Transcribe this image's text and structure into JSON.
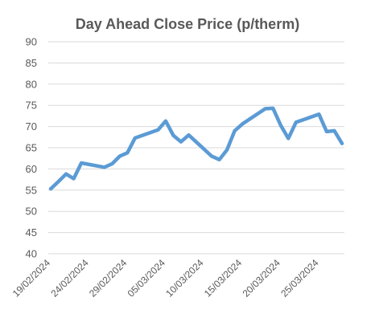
{
  "chart_data": {
    "type": "line",
    "title": "Day Ahead Close Price (p/therm)",
    "xlabel": "",
    "ylabel": "",
    "ylim": [
      40,
      90
    ],
    "yticks": [
      40,
      45,
      50,
      55,
      60,
      65,
      70,
      75,
      80,
      85,
      90
    ],
    "xticks": [
      "19/02/2024",
      "24/02/2024",
      "29/02/2024",
      "05/03/2024",
      "10/03/2024",
      "15/03/2024",
      "20/03/2024",
      "25/03/2024"
    ],
    "grid": "horizontal",
    "legend": "none",
    "line_color": "#5b9bd5",
    "series": [
      {
        "x": [
          "19/02/2024",
          "20/02/2024",
          "21/02/2024",
          "22/02/2024",
          "23/02/2024",
          "26/02/2024",
          "27/02/2024",
          "28/02/2024",
          "29/02/2024",
          "01/03/2024",
          "04/03/2024",
          "05/03/2024",
          "06/03/2024",
          "07/03/2024",
          "08/03/2024",
          "11/03/2024",
          "12/03/2024",
          "13/03/2024",
          "14/03/2024",
          "15/03/2024",
          "18/03/2024",
          "19/03/2024",
          "20/03/2024",
          "21/03/2024",
          "22/03/2024",
          "25/03/2024",
          "26/03/2024",
          "27/03/2024",
          "28/03/2024"
        ],
        "values": [
          55.3,
          57.0,
          58.8,
          57.7,
          61.4,
          60.4,
          61.2,
          63.0,
          63.8,
          67.3,
          69.2,
          71.3,
          67.9,
          66.4,
          68.0,
          63.0,
          62.2,
          64.5,
          69.0,
          70.6,
          74.2,
          74.3,
          70.3,
          67.2,
          71.0,
          72.9,
          68.8,
          69.0,
          66.0
        ]
      }
    ]
  }
}
